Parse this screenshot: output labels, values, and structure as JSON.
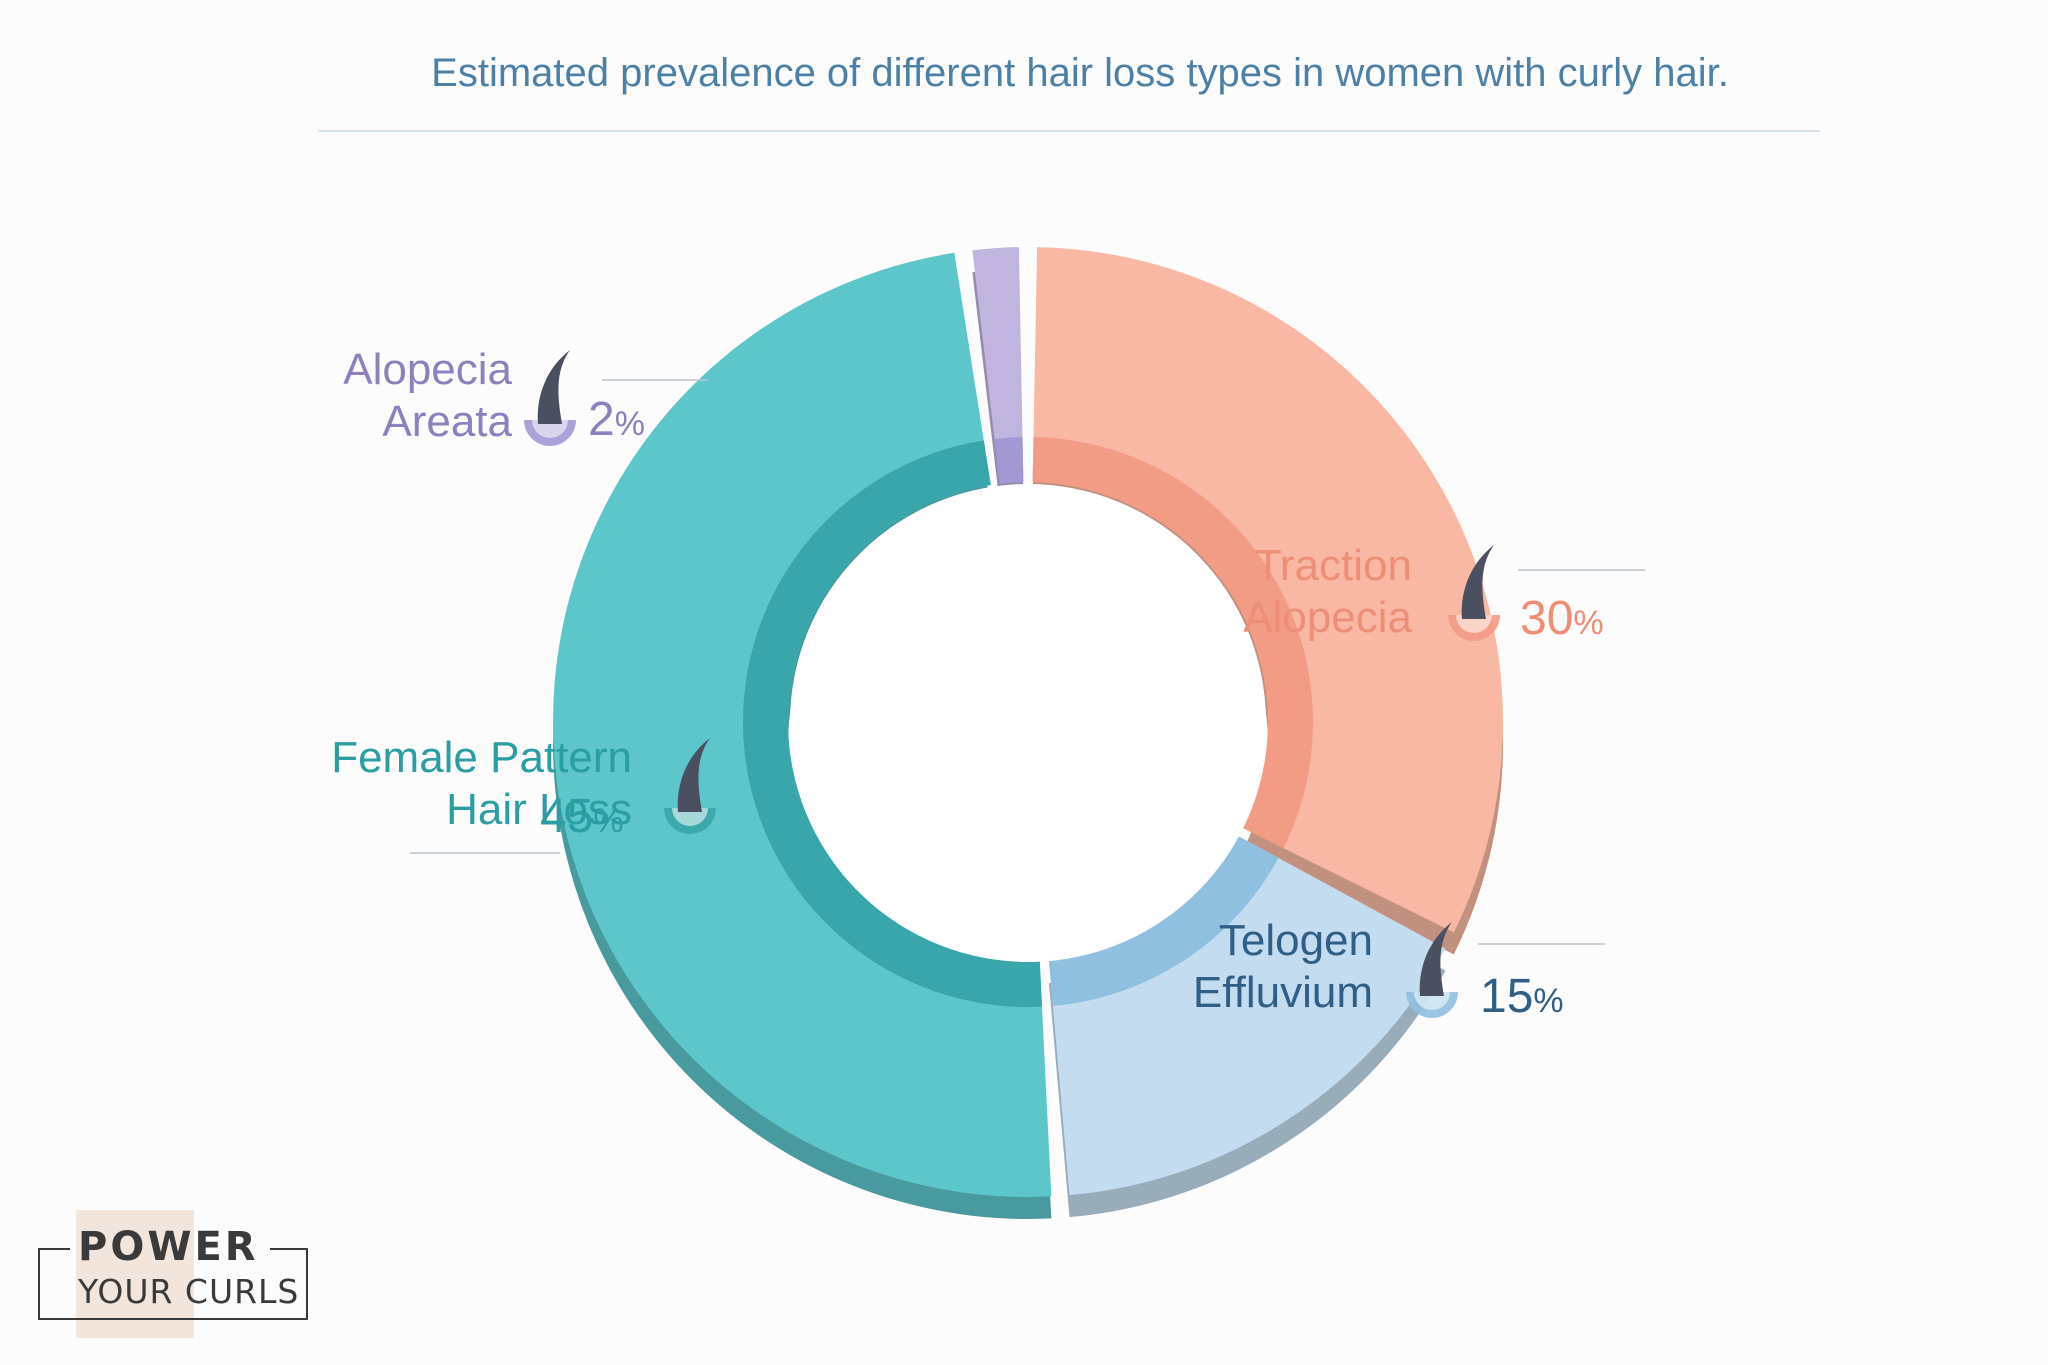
{
  "chart_data": {
    "type": "pie",
    "variant": "donut",
    "title": "Estimated prevalence of different hair loss types in women with curly hair.",
    "unit": "%",
    "slices": [
      {
        "label_lines": [
          "Traction",
          "Alopecia"
        ],
        "value": 30,
        "value_text": "30",
        "color": "#f9b8a3",
        "inner_color": "#f29b85",
        "label_color": "#ee8e76",
        "side": "right"
      },
      {
        "label_lines": [
          "Telogen",
          "Effluvium"
        ],
        "value": 15,
        "value_text": "15",
        "color": "#c4dcef",
        "inner_color": "#8fc0e0",
        "label_color": "#2f5f86",
        "side": "right"
      },
      {
        "label_lines": [
          "Female Pattern",
          "Hair Loss"
        ],
        "value": 45,
        "value_text": "45",
        "color": "#5cc6ca",
        "inner_color": "#38a6aa",
        "label_color": "#2a9ea2",
        "side": "left"
      },
      {
        "label_lines": [
          "Alopecia",
          "Areata"
        ],
        "value": 2,
        "value_text": "2",
        "color": "#c1b4df",
        "inner_color": "#a398d3",
        "label_color": "#8e7fbe",
        "side": "left"
      }
    ],
    "legend": "none"
  },
  "logo": {
    "line1": "POWER",
    "line2": "YOUR CURLS"
  }
}
